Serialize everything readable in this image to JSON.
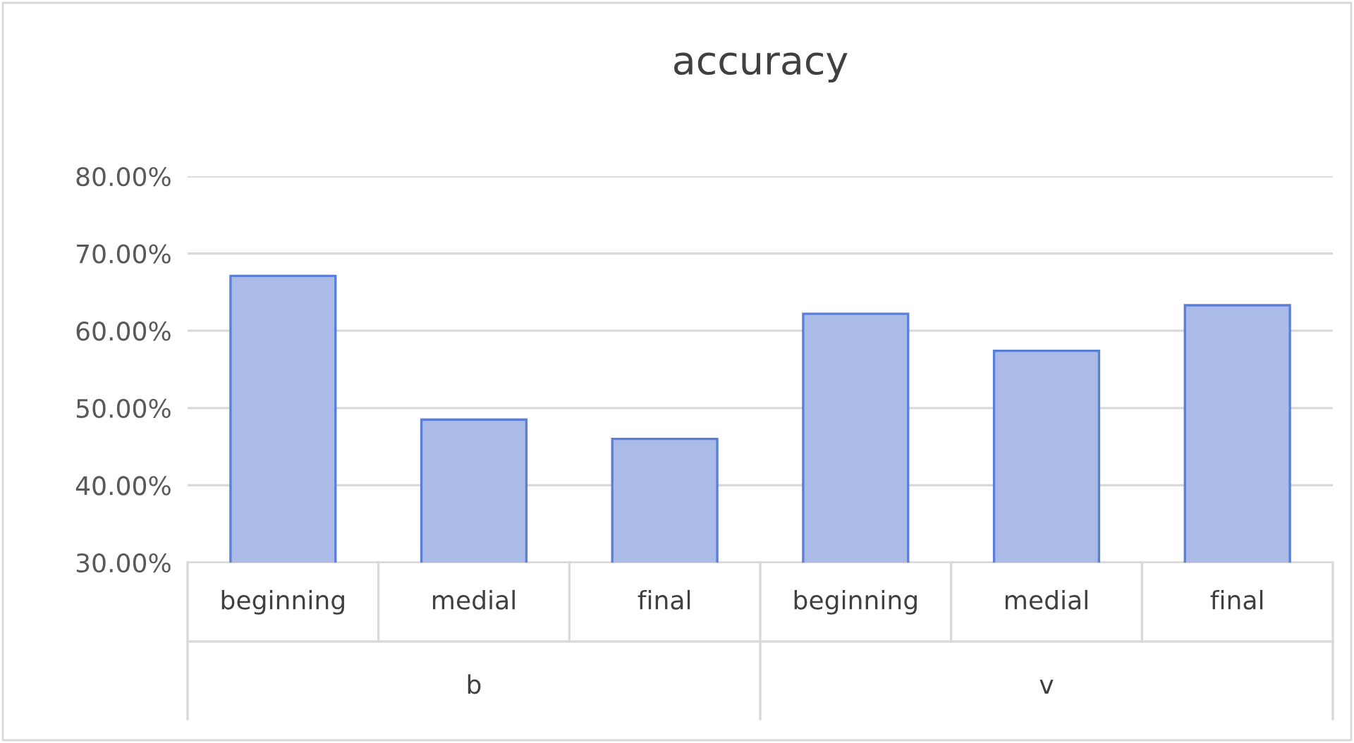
{
  "chart_data": {
    "type": "bar",
    "title": "accuracy",
    "categories": [
      "beginning",
      "medial",
      "final",
      "beginning",
      "medial",
      "final"
    ],
    "values": [
      67.1,
      48.5,
      46.0,
      62.2,
      57.4,
      63.3
    ],
    "color": "#abbbe8",
    "ylim": [
      30,
      80
    ],
    "yticks": [
      {
        "value": 30,
        "label": "30.00%"
      },
      {
        "value": 40,
        "label": "40.00%"
      },
      {
        "value": 50,
        "label": "50.00%"
      },
      {
        "value": 60,
        "label": "60.00%"
      },
      {
        "value": 70,
        "label": "70.00%"
      },
      {
        "value": 80,
        "label": "80.00%"
      }
    ],
    "grid": "y",
    "annotations": [
      "b",
      "v"
    ]
  }
}
